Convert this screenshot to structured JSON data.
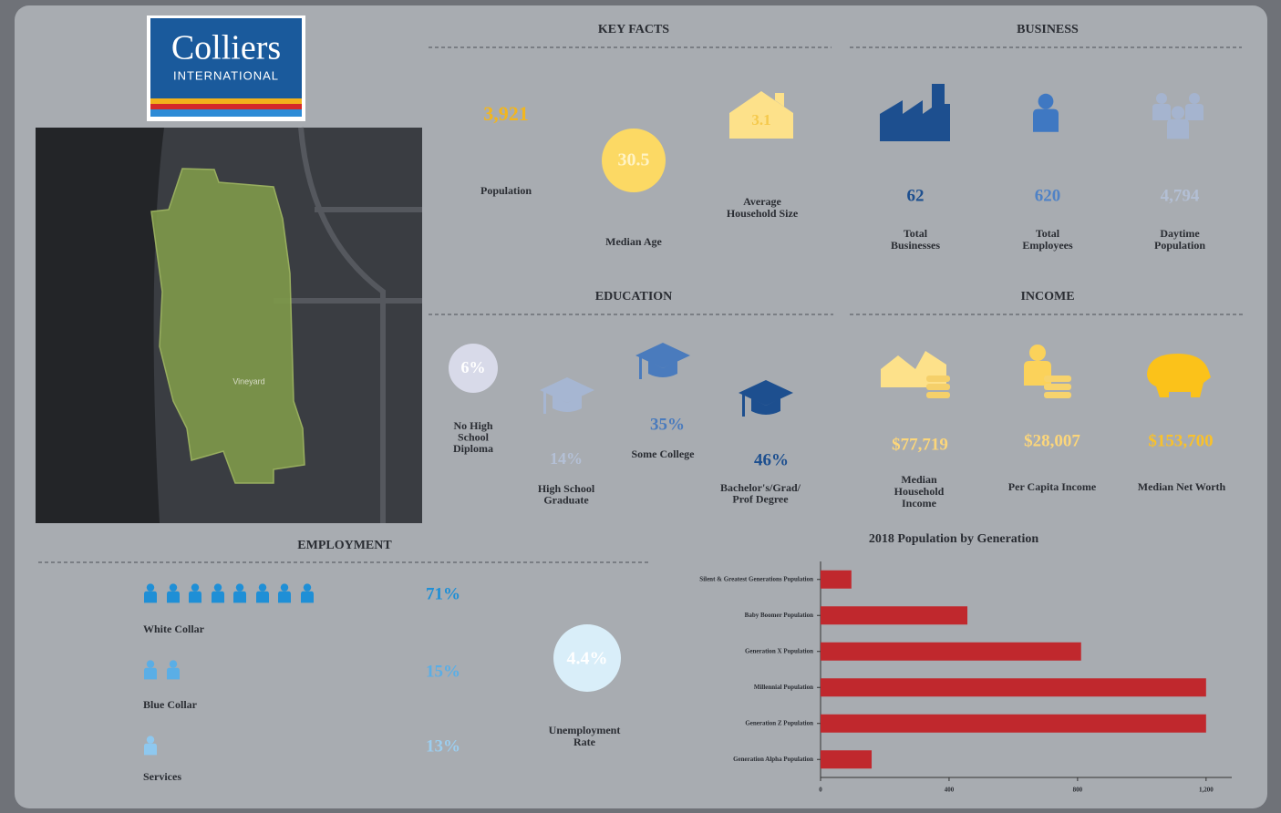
{
  "logo": {
    "name": "Colliers",
    "tagline": "INTERNATIONAL"
  },
  "map": {
    "label": "Vineyard"
  },
  "key_facts": {
    "title": "KEY FACTS",
    "items": [
      {
        "value": "3,921",
        "label": [
          "Population"
        ]
      },
      {
        "value": "30.5",
        "label": [
          "Median Age"
        ]
      },
      {
        "value": "3.1",
        "label": [
          "Average",
          "Household Size"
        ]
      }
    ]
  },
  "business": {
    "title": "BUSINESS",
    "items": [
      {
        "value": "62",
        "label": [
          "Total",
          "Businesses"
        ]
      },
      {
        "value": "620",
        "label": [
          "Total",
          "Employees"
        ]
      },
      {
        "value": "4,794",
        "label": [
          "Daytime",
          "Population"
        ]
      }
    ]
  },
  "education": {
    "title": "EDUCATION",
    "items": [
      {
        "value": "6%",
        "label": [
          "No High",
          "School",
          "Diploma"
        ]
      },
      {
        "value": "14%",
        "label": [
          "High School",
          "Graduate"
        ]
      },
      {
        "value": "35%",
        "label": [
          "Some College"
        ]
      },
      {
        "value": "46%",
        "label": [
          "Bachelor's/Grad/",
          "Prof Degree"
        ]
      }
    ]
  },
  "income": {
    "title": "INCOME",
    "items": [
      {
        "value": "$77,719",
        "label": [
          "Median",
          "Household",
          "Income"
        ]
      },
      {
        "value": "$28,007",
        "label": [
          "Per Capita Income"
        ]
      },
      {
        "value": "$153,700",
        "label": [
          "Median Net Worth"
        ]
      }
    ]
  },
  "employment": {
    "title": "EMPLOYMENT",
    "items": [
      {
        "value": "71%",
        "label": "White Collar"
      },
      {
        "value": "15%",
        "label": "Blue Collar"
      },
      {
        "value": "13%",
        "label": "Services"
      }
    ],
    "unemployment": {
      "value": "4.4%",
      "label": [
        "Unemployment",
        "Rate"
      ]
    }
  },
  "chart_data": {
    "type": "bar",
    "title": "2018 Population by Generation",
    "categories": [
      "Silent & Greatest Generations Population",
      "Baby Boomer Population",
      "Generation X Population",
      "Millennial Population",
      "Generation Z Population",
      "Generation Alpha Population"
    ],
    "values": [
      96,
      457,
      811,
      1200,
      1200,
      159
    ],
    "color": "#c0282d",
    "orientation": "horizontal",
    "xlim": [
      0,
      1280
    ],
    "xticks": [
      0,
      400,
      800,
      {
        "value": 1200,
        "label": "1,200"
      }
    ]
  }
}
